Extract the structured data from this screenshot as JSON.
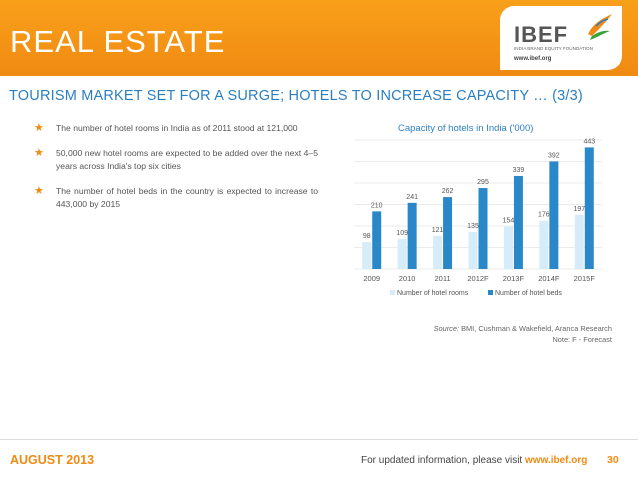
{
  "header": {
    "title": "REAL ESTATE"
  },
  "logo": {
    "name": "IBEF",
    "tagline": "INDIA BRAND EQUITY FOUNDATION",
    "url": "www.ibef.org"
  },
  "subtitle": "TOURISM MARKET SET FOR A SURGE; HOTELS TO INCREASE CAPACITY … (3/3)",
  "bullets": [
    "The number of hotel rooms in India as of 2011 stood at 121,000",
    "50,000 new hotel rooms are expected to be added over the next 4–5 years across India's top six cities",
    "The number of hotel beds in the country is expected to increase to 443,000 by 2015"
  ],
  "chart_data": {
    "type": "bar",
    "title": "Capacity of hotels in India ('000)",
    "categories": [
      "2009",
      "2010",
      "2011",
      "2012F",
      "2013F",
      "2014F",
      "2015F"
    ],
    "series": [
      {
        "name": "Number of hotel rooms",
        "values": [
          98,
          109,
          121,
          135,
          154,
          176,
          197
        ],
        "color": "#d6ecf8"
      },
      {
        "name": "Number of hotel beds",
        "values": [
          210,
          241,
          262,
          295,
          339,
          392,
          443
        ],
        "color": "#2a88c8"
      }
    ],
    "ylim": [
      0,
      470
    ],
    "grid": true,
    "legend": "bottom"
  },
  "source": {
    "label": "Source:",
    "text": " BMI, Cushman & Wakefield, Aranca Research",
    "note": "Note: F - Forecast"
  },
  "footer": {
    "date": "AUGUST 2013",
    "info": "For updated information, please visit ",
    "url": "www.ibef.org",
    "page": "30"
  },
  "colors": {
    "accent": "#f08a12",
    "blue": "#2a7fc0"
  }
}
